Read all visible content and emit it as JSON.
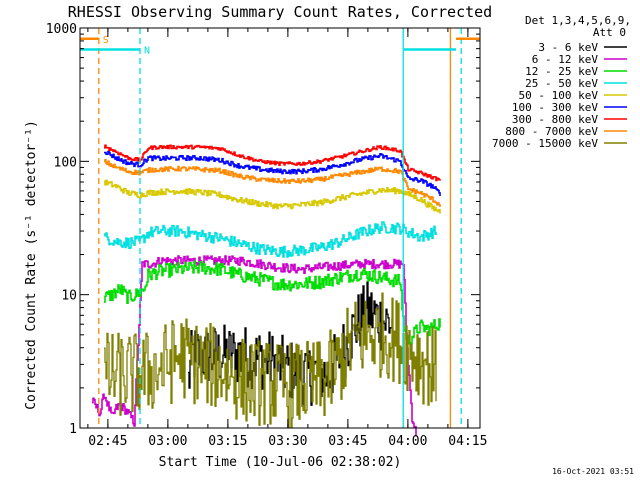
{
  "chart_data": {
    "type": "line",
    "title": "RHESSI Observing Summary Count Rates, Corrected",
    "xlabel": "Start Time (10-Jul-06 02:38:02)",
    "ylabel": "Corrected Count Rate (s⁻¹ detector⁻¹)",
    "yscale": "log",
    "ylim": [
      1,
      1000
    ],
    "xlim_minutes_after_02_38_02": [
      0,
      100
    ],
    "y_ticks": [
      {
        "value": 1,
        "label": "1"
      },
      {
        "value": 10,
        "label": "10"
      },
      {
        "value": 100,
        "label": "100"
      },
      {
        "value": 1000,
        "label": "1000"
      }
    ],
    "x_ticks": [
      {
        "value": 6.97,
        "label": "02:45"
      },
      {
        "value": 21.97,
        "label": "03:00"
      },
      {
        "value": 36.97,
        "label": "03:15"
      },
      {
        "value": 51.97,
        "label": "03:30"
      },
      {
        "value": 66.97,
        "label": "03:45"
      },
      {
        "value": 81.97,
        "label": "04:00"
      },
      {
        "value": 96.97,
        "label": "04:15"
      }
    ],
    "x_minor_step": 5,
    "legend_header": [
      "Det 1,3,4,5,6,9,",
      "Att 0"
    ],
    "legend_position": "right",
    "series": [
      {
        "name": "3 - 6 keV",
        "color": "#000000",
        "noise": 0.55,
        "x": [
          27,
          28,
          40,
          46,
          55,
          60,
          62,
          66,
          69,
          72,
          75,
          78
        ],
        "y": [
          2.2,
          3.5,
          3.5,
          3.3,
          2.5,
          2.6,
          2.5,
          4.0,
          6.0,
          7.5,
          6.5,
          6.0
        ]
      },
      {
        "name": "6 - 12 keV",
        "color": "#cc00cc",
        "noise": 0.08,
        "x": [
          3,
          5,
          6,
          8,
          9,
          10,
          12,
          13.5,
          15.5,
          17.5,
          18.5,
          20,
          30,
          40,
          45,
          50,
          55,
          60,
          70,
          77,
          80,
          80.8,
          81.6,
          83,
          84
        ],
        "y": [
          1.6,
          1.3,
          1.8,
          1.2,
          1.4,
          1.5,
          1.3,
          1.1,
          17,
          17,
          17.2,
          18,
          18,
          18,
          17,
          16,
          15.5,
          16,
          17,
          17,
          17,
          17.3,
          4.5,
          1.2,
          0.9
        ]
      },
      {
        "name": "12 - 25 keV",
        "color": "#00dd00",
        "noise": 0.12,
        "x": [
          6,
          8,
          9,
          10,
          12,
          14,
          16,
          17,
          20,
          25,
          30,
          35,
          40,
          45,
          50,
          55,
          60,
          65,
          70,
          75,
          80,
          81,
          82,
          85,
          87,
          90
        ],
        "y": [
          9.5,
          10,
          10.5,
          11,
          9.5,
          10,
          11,
          14,
          15,
          15.5,
          16,
          15.5,
          14,
          13,
          12,
          12,
          12.5,
          13.5,
          14.5,
          13.5,
          12.5,
          5.5,
          4.5,
          5.8,
          5.5,
          6.2
        ]
      },
      {
        "name": "25 - 50 keV",
        "color": "#00e0e0",
        "noise": 0.1,
        "x": [
          6,
          9,
          12,
          15,
          17,
          20,
          25,
          30,
          35,
          40,
          45,
          50,
          55,
          60,
          65,
          70,
          75,
          80,
          85,
          89
        ],
        "y": [
          27,
          25,
          24.5,
          25,
          29,
          30,
          30,
          28,
          26.5,
          24,
          22,
          21,
          21.5,
          22.5,
          25,
          29,
          32,
          31.5,
          27,
          30
        ]
      },
      {
        "name": "50 - 100 keV",
        "color": "#d8c800",
        "noise": 0.05,
        "x": [
          6,
          9,
          12,
          15,
          17,
          20,
          25,
          30,
          35,
          40,
          45,
          50,
          55,
          60,
          65,
          70,
          75,
          80,
          85,
          88,
          90
        ],
        "y": [
          70,
          65,
          58,
          56,
          58,
          59,
          60,
          58.5,
          56,
          51,
          48,
          46,
          47,
          49,
          53,
          57,
          61,
          60,
          52,
          45,
          42
        ]
      },
      {
        "name": "100 - 300 keV",
        "color": "#0000ff",
        "noise": 0.04,
        "x": [
          6,
          9,
          12,
          15,
          17,
          20,
          25,
          30,
          35,
          40,
          45,
          50,
          55,
          60,
          65,
          70,
          75,
          80,
          82,
          85,
          88,
          90
        ],
        "y": [
          120,
          106,
          97,
          94,
          106,
          105,
          106,
          106,
          102,
          92,
          87,
          84,
          84,
          87,
          94,
          103,
          110,
          100,
          74,
          72,
          65,
          57
        ]
      },
      {
        "name": "300 - 800 keV",
        "color": "#ff0000",
        "noise": 0.03,
        "x": [
          6,
          9,
          12,
          15,
          17,
          20,
          25,
          30,
          35,
          40,
          45,
          50,
          55,
          60,
          65,
          70,
          75,
          80,
          82,
          85,
          88,
          90
        ],
        "y": [
          130,
          118,
          106,
          102,
          126,
          128,
          128,
          128,
          125,
          110,
          100,
          96,
          96,
          100,
          108,
          118,
          128,
          120,
          87,
          82,
          76,
          72
        ]
      },
      {
        "name": "800 - 7000 keV",
        "color": "#ff8800",
        "noise": 0.04,
        "x": [
          6,
          9,
          12,
          15,
          17,
          20,
          25,
          30,
          35,
          40,
          45,
          50,
          55,
          60,
          65,
          70,
          75,
          80,
          82,
          85,
          88,
          90
        ],
        "y": [
          100,
          90,
          84,
          82,
          86,
          87,
          88,
          87,
          85,
          77,
          73,
          71,
          71,
          73,
          78,
          83,
          88,
          84,
          62,
          58,
          52,
          47
        ]
      },
      {
        "name": "7000 - 15000 keV",
        "color": "#808000",
        "noise": 0.75,
        "x": [
          6,
          10,
          15,
          20,
          25,
          30,
          35,
          40,
          45,
          50,
          55,
          60,
          64,
          68,
          72,
          76,
          80,
          84,
          87,
          89
        ],
        "y": [
          2.5,
          2.5,
          2.5,
          2.8,
          3.5,
          3.0,
          2.8,
          2.3,
          2.2,
          2.1,
          2.1,
          2.2,
          2.8,
          4.5,
          5.0,
          5.0,
          4.5,
          3.5,
          3.0,
          2.6
        ]
      }
    ],
    "attenuator_bars": [
      {
        "label": "S",
        "color": "#ff8800",
        "segments": [
          [
            -3,
            4.7
          ],
          [
            94,
            101
          ]
        ],
        "y": 830
      },
      {
        "label": "N",
        "color": "#00e0e0",
        "segments": [
          [
            -3,
            15
          ],
          [
            81,
            94
          ]
        ],
        "y": 690
      }
    ],
    "vertical_markers": [
      {
        "x": 4.7,
        "color": "#ff8800",
        "style": "dashed"
      },
      {
        "x": 15,
        "color": "#00e0e0",
        "style": "dashed"
      },
      {
        "x": 80.8,
        "color": "#00e0e0",
        "style": "solid"
      },
      {
        "x": 92.6,
        "color": "#ff8800",
        "style": "solid"
      },
      {
        "x": 95.3,
        "color": "#00e0e0",
        "style": "dashed"
      }
    ],
    "grid": false,
    "timestamp": "16-Oct-2021 03:51"
  }
}
